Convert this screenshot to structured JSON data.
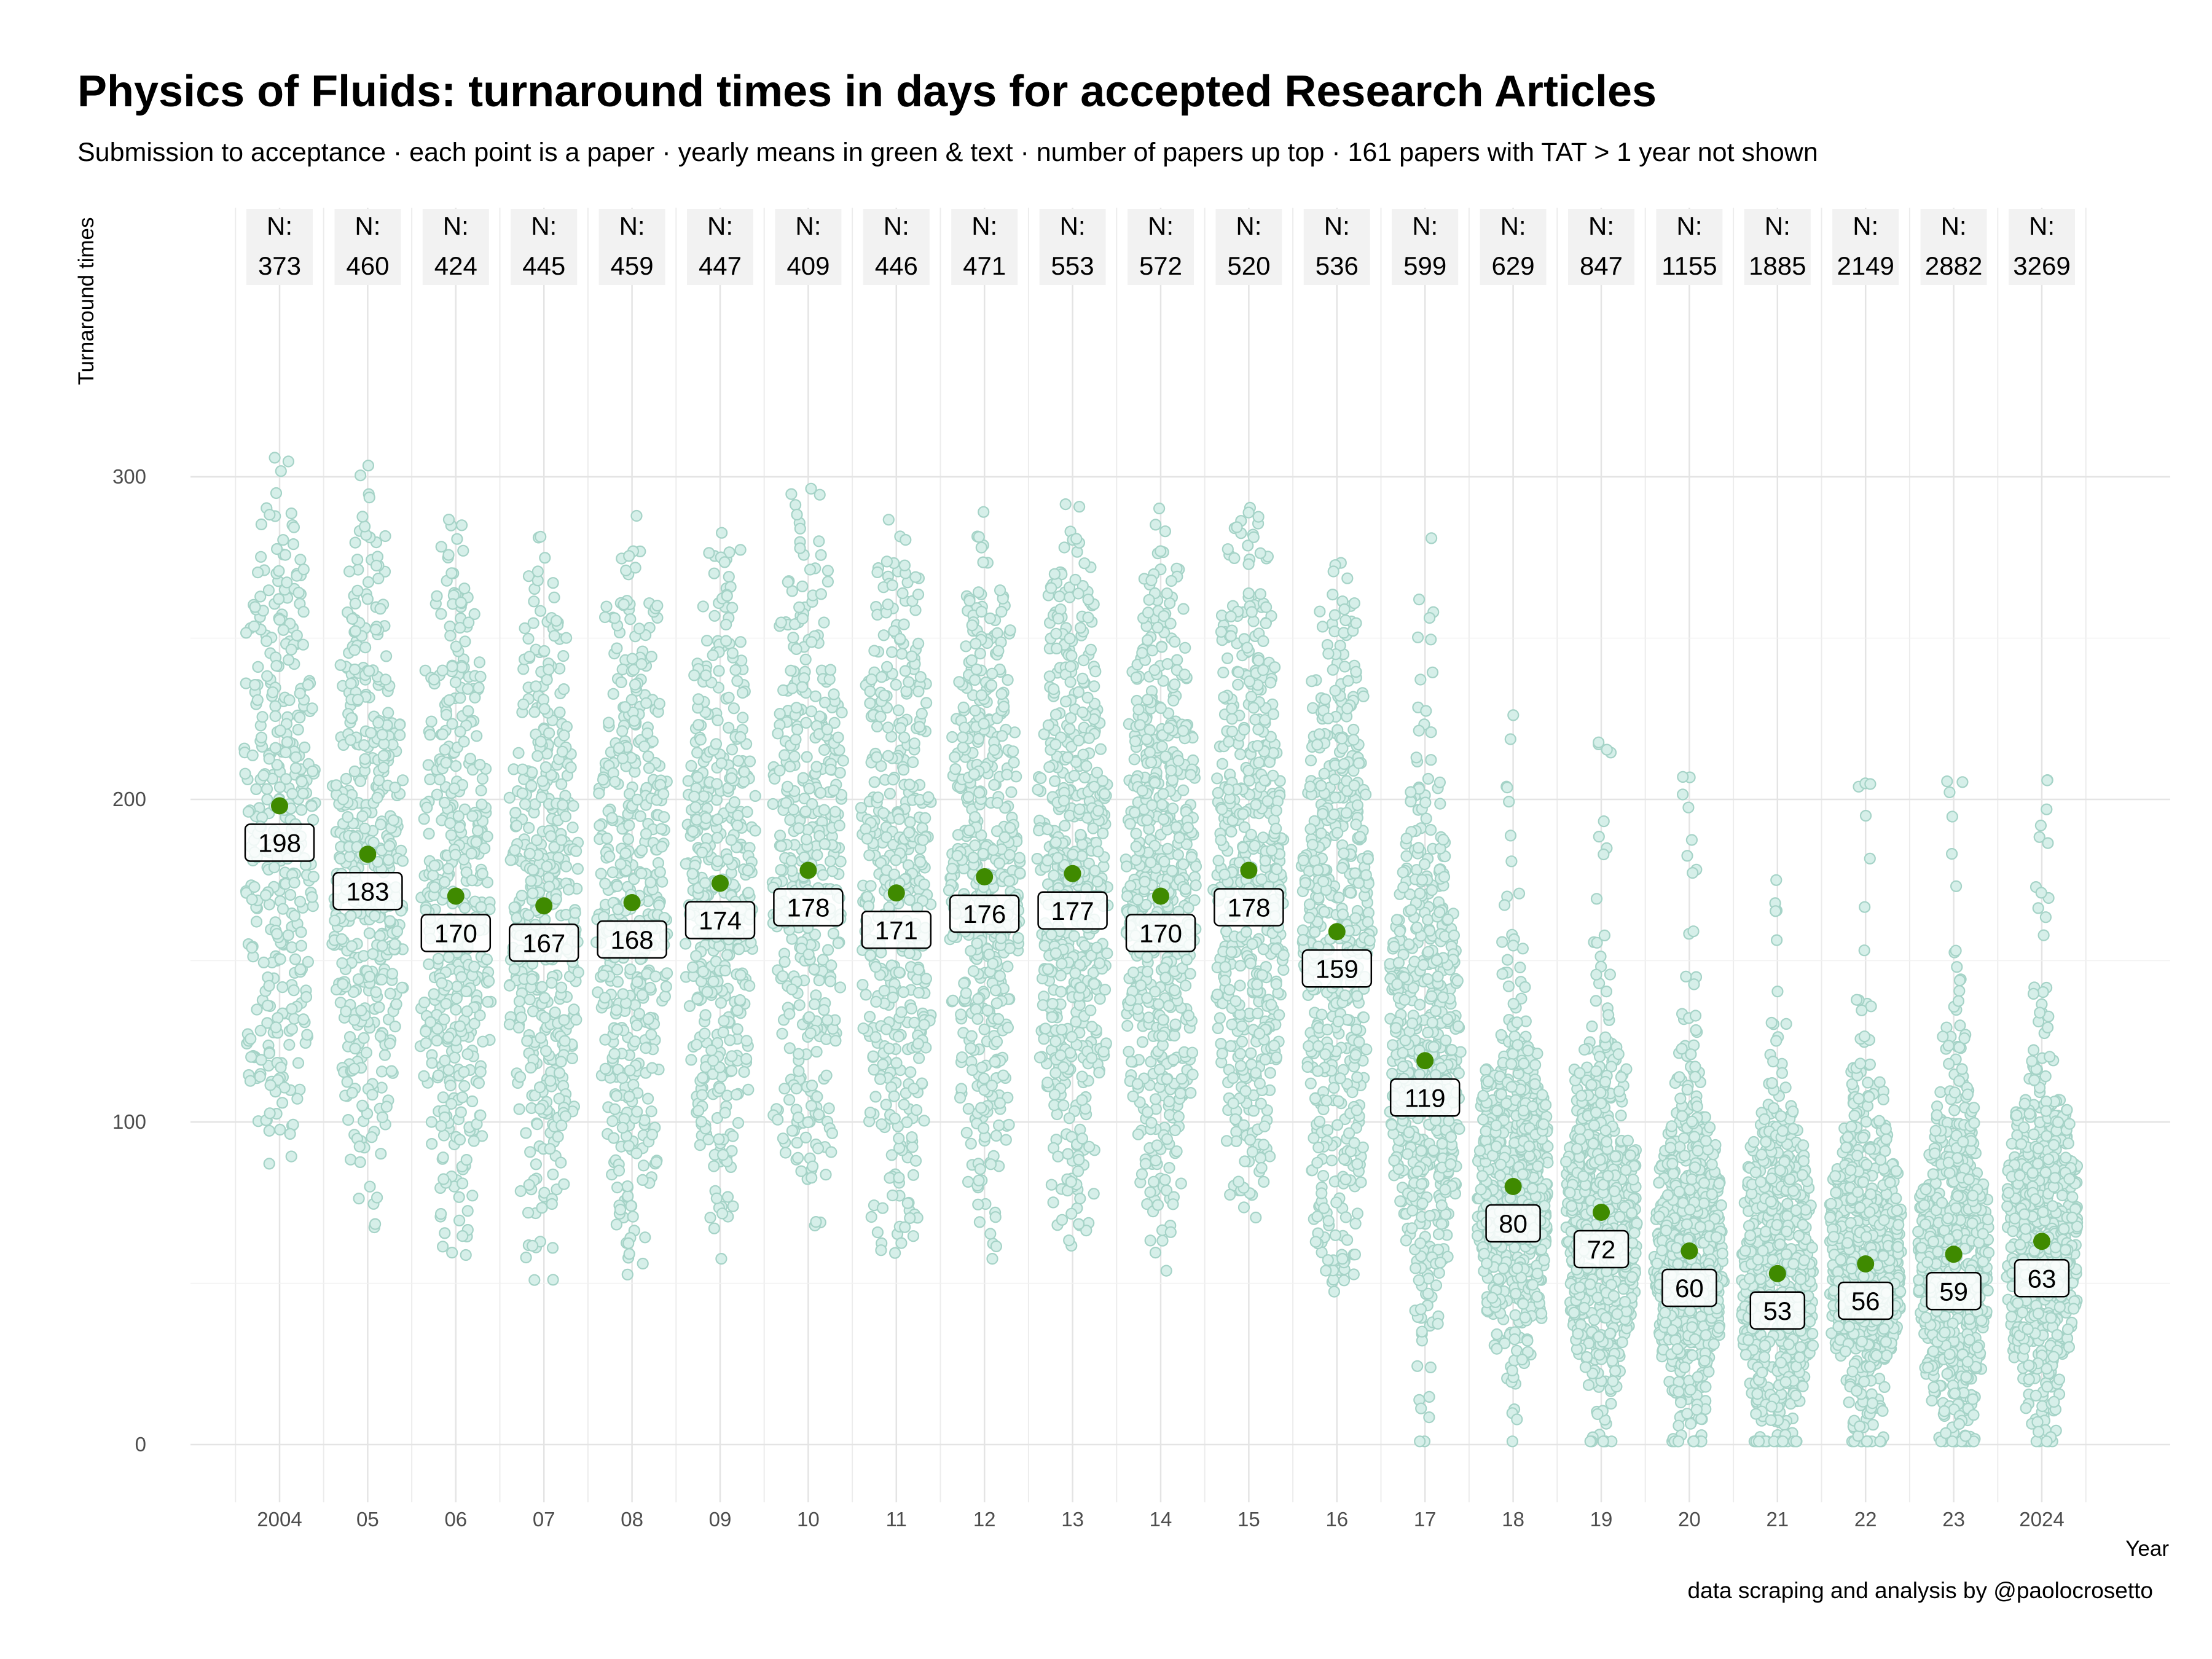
{
  "title": "Physics of Fluids: turnaround times in days for accepted Research Articles",
  "subtitle": "Submission to acceptance · each point is a paper · yearly means in green & text · number of papers up top · 161 papers with TAT > 1 year not shown",
  "caption": "data scraping and analysis by @paolocrosetto",
  "colors": {
    "point_fill": "#d6efe9",
    "point_stroke": "#a5d3c7",
    "mean": "#3f8a00",
    "grid": "#e4e4e4",
    "n_box": "#f2f2f2"
  },
  "chart_data": {
    "type": "scatter",
    "xlabel": "Year",
    "ylabel": "Turnaround times",
    "ylim": [
      0,
      365
    ],
    "yticks": [
      0,
      100,
      200,
      300
    ],
    "grid": true,
    "n_prefix": "N:",
    "categories": [
      "2004",
      "05",
      "06",
      "07",
      "08",
      "09",
      "10",
      "11",
      "12",
      "13",
      "14",
      "15",
      "16",
      "17",
      "18",
      "19",
      "20",
      "21",
      "22",
      "23",
      "2024"
    ],
    "counts": [
      373,
      460,
      424,
      445,
      459,
      447,
      409,
      446,
      471,
      553,
      572,
      520,
      536,
      599,
      629,
      847,
      1155,
      1885,
      2149,
      2882,
      3269
    ],
    "means": [
      198,
      183,
      170,
      167,
      168,
      174,
      178,
      171,
      176,
      177,
      170,
      178,
      159,
      119,
      80,
      72,
      60,
      53,
      56,
      59,
      63
    ]
  }
}
